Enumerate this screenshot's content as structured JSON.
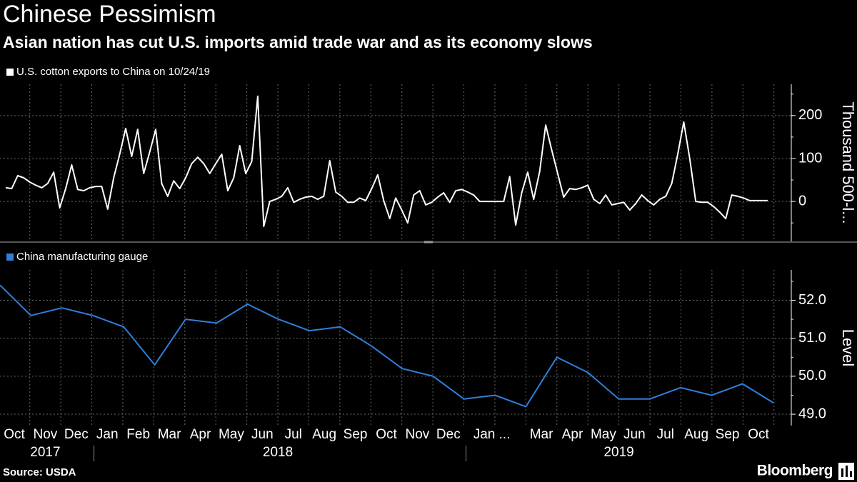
{
  "title": "Chinese Pessimism",
  "subtitle": "Asian nation has cut U.S. imports amid trade war and as its economy slows",
  "source": "Source: USDA",
  "brand": "Bloomberg",
  "x_axis": {
    "labels": [
      "Oct",
      "Nov",
      "Dec",
      "Jan",
      "Feb",
      "Mar",
      "Apr",
      "May",
      "Jun",
      "Jul",
      "Aug",
      "Sep",
      "Oct",
      "Nov",
      "Dec",
      "Jan ...",
      "Mar",
      "Apr",
      "May",
      "Jun",
      "Jul",
      "Aug",
      "Sep",
      "Oct"
    ],
    "years": [
      "2017",
      "2018",
      "2019"
    ]
  },
  "chart_data": [
    {
      "type": "line",
      "ylabel": "Thousand 500-l...",
      "ylim": [
        -93,
        273
      ],
      "yticks": [
        0,
        100,
        200
      ],
      "grid": true,
      "series": [
        {
          "name": "U.S. cotton exports to China on 10/24/19",
          "color": "#ffffff",
          "values": [
            32,
            30,
            60,
            55,
            45,
            38,
            32,
            42,
            68,
            -15,
            30,
            85,
            28,
            25,
            32,
            35,
            35,
            -18,
            55,
            110,
            170,
            105,
            168,
            65,
            115,
            168,
            42,
            12,
            48,
            30,
            55,
            88,
            103,
            88,
            65,
            88,
            110,
            25,
            55,
            130,
            65,
            93,
            245,
            -58,
            0,
            5,
            12,
            32,
            -2,
            5,
            10,
            12,
            5,
            12,
            95,
            22,
            12,
            -2,
            -2,
            8,
            2,
            30,
            62,
            2,
            -40,
            8,
            -20,
            -50,
            15,
            25,
            -8,
            -2,
            10,
            20,
            -2,
            25,
            28,
            22,
            15,
            0,
            0,
            0,
            0,
            0,
            58,
            -55,
            20,
            68,
            5,
            70,
            178,
            120,
            65,
            10,
            30,
            28,
            32,
            38,
            5,
            -5,
            15,
            -8,
            -5,
            -2,
            -20,
            -5,
            15,
            2,
            -8,
            5,
            12,
            42,
            110,
            185,
            100,
            0,
            -2,
            -2,
            -12,
            -25,
            -40,
            15,
            12,
            8,
            2,
            2,
            2,
            2
          ]
        }
      ]
    },
    {
      "type": "line",
      "ylabel": "Level",
      "ylim": [
        48.7,
        52.8
      ],
      "yticks": [
        {
          "value": 49,
          "label": "49.0"
        },
        {
          "value": 50,
          "label": "50.0"
        },
        {
          "value": 51,
          "label": "51.0"
        },
        {
          "value": 52,
          "label": "52.0"
        }
      ],
      "grid": true,
      "series": [
        {
          "name": "China manufacturing gauge",
          "color": "#2f7fd8",
          "values": [
            52.4,
            51.6,
            51.8,
            51.6,
            51.3,
            50.3,
            51.5,
            51.4,
            51.9,
            51.5,
            51.2,
            51.3,
            50.8,
            50.2,
            50.0,
            49.4,
            49.5,
            49.2,
            50.5,
            50.1,
            49.4,
            49.4,
            49.7,
            49.5,
            49.8,
            49.3
          ]
        }
      ]
    }
  ]
}
